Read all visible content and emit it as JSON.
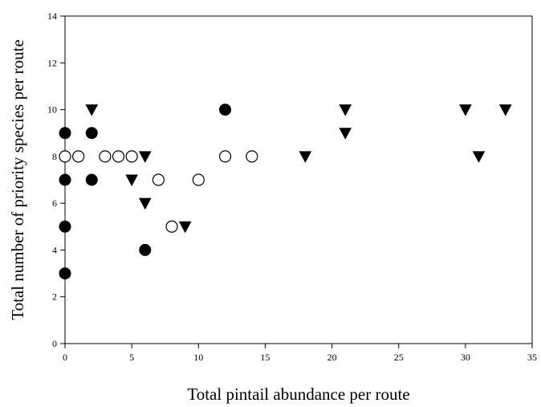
{
  "chart_data": {
    "type": "scatter",
    "title": "",
    "xlabel": "Total pintail abundance per route",
    "ylabel": "Total number of priority species per route",
    "xlim": [
      0,
      35
    ],
    "ylim": [
      0,
      14
    ],
    "xticks": [
      0,
      5,
      10,
      15,
      20,
      25,
      30,
      35
    ],
    "yticks": [
      0,
      2,
      4,
      6,
      8,
      10,
      12,
      14
    ],
    "grid": false,
    "legend": "none",
    "series": [
      {
        "marker": "filled-circle",
        "color": "#000000",
        "points": [
          [
            0,
            9
          ],
          [
            0,
            7
          ],
          [
            0,
            5
          ],
          [
            0,
            3
          ],
          [
            2,
            9
          ],
          [
            2,
            7
          ],
          [
            6,
            4
          ],
          [
            12,
            10
          ]
        ]
      },
      {
        "marker": "open-circle",
        "color": "#000000",
        "points": [
          [
            0,
            8
          ],
          [
            1,
            8
          ],
          [
            3,
            8
          ],
          [
            4,
            8
          ],
          [
            5,
            8
          ],
          [
            7,
            7
          ],
          [
            8,
            5
          ],
          [
            10,
            7
          ],
          [
            12,
            8
          ],
          [
            14,
            8
          ]
        ]
      },
      {
        "marker": "filled-triangle-down",
        "color": "#000000",
        "points": [
          [
            2,
            10
          ],
          [
            5,
            7
          ],
          [
            6,
            8
          ],
          [
            6,
            6
          ],
          [
            9,
            5
          ],
          [
            18,
            8
          ],
          [
            21,
            10
          ],
          [
            21,
            9
          ],
          [
            30,
            10
          ],
          [
            31,
            8
          ],
          [
            33,
            10
          ]
        ]
      }
    ]
  }
}
